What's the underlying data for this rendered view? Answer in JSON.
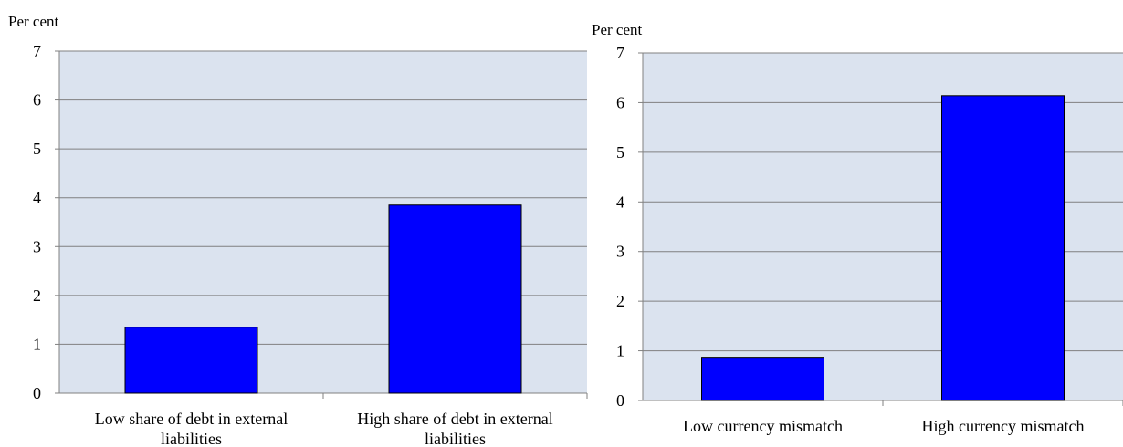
{
  "colors": {
    "plot_background": "#dbe3ef",
    "bar_fill": "#0000ff",
    "bar_stroke": "#000000",
    "gridline": "#808080",
    "axis": "#808080"
  },
  "chart_data": [
    {
      "type": "bar",
      "ylabel": "Per cent",
      "ylim": [
        0,
        7
      ],
      "yticks": [
        "0",
        "1",
        "2",
        "3",
        "4",
        "5",
        "6",
        "7"
      ],
      "grid": true,
      "categories": [
        [
          "Low share of debt in external",
          "liabilities"
        ],
        [
          "High share of debt in external",
          "liabilities"
        ]
      ],
      "values": [
        1.35,
        3.85
      ]
    },
    {
      "type": "bar",
      "ylabel": "Per cent",
      "ylim": [
        0,
        7
      ],
      "yticks": [
        "0",
        "1",
        "2",
        "3",
        "4",
        "5",
        "6",
        "7"
      ],
      "grid": true,
      "categories": [
        [
          "Low currency mismatch"
        ],
        [
          "High currency mismatch"
        ]
      ],
      "values": [
        0.87,
        6.14
      ]
    }
  ]
}
